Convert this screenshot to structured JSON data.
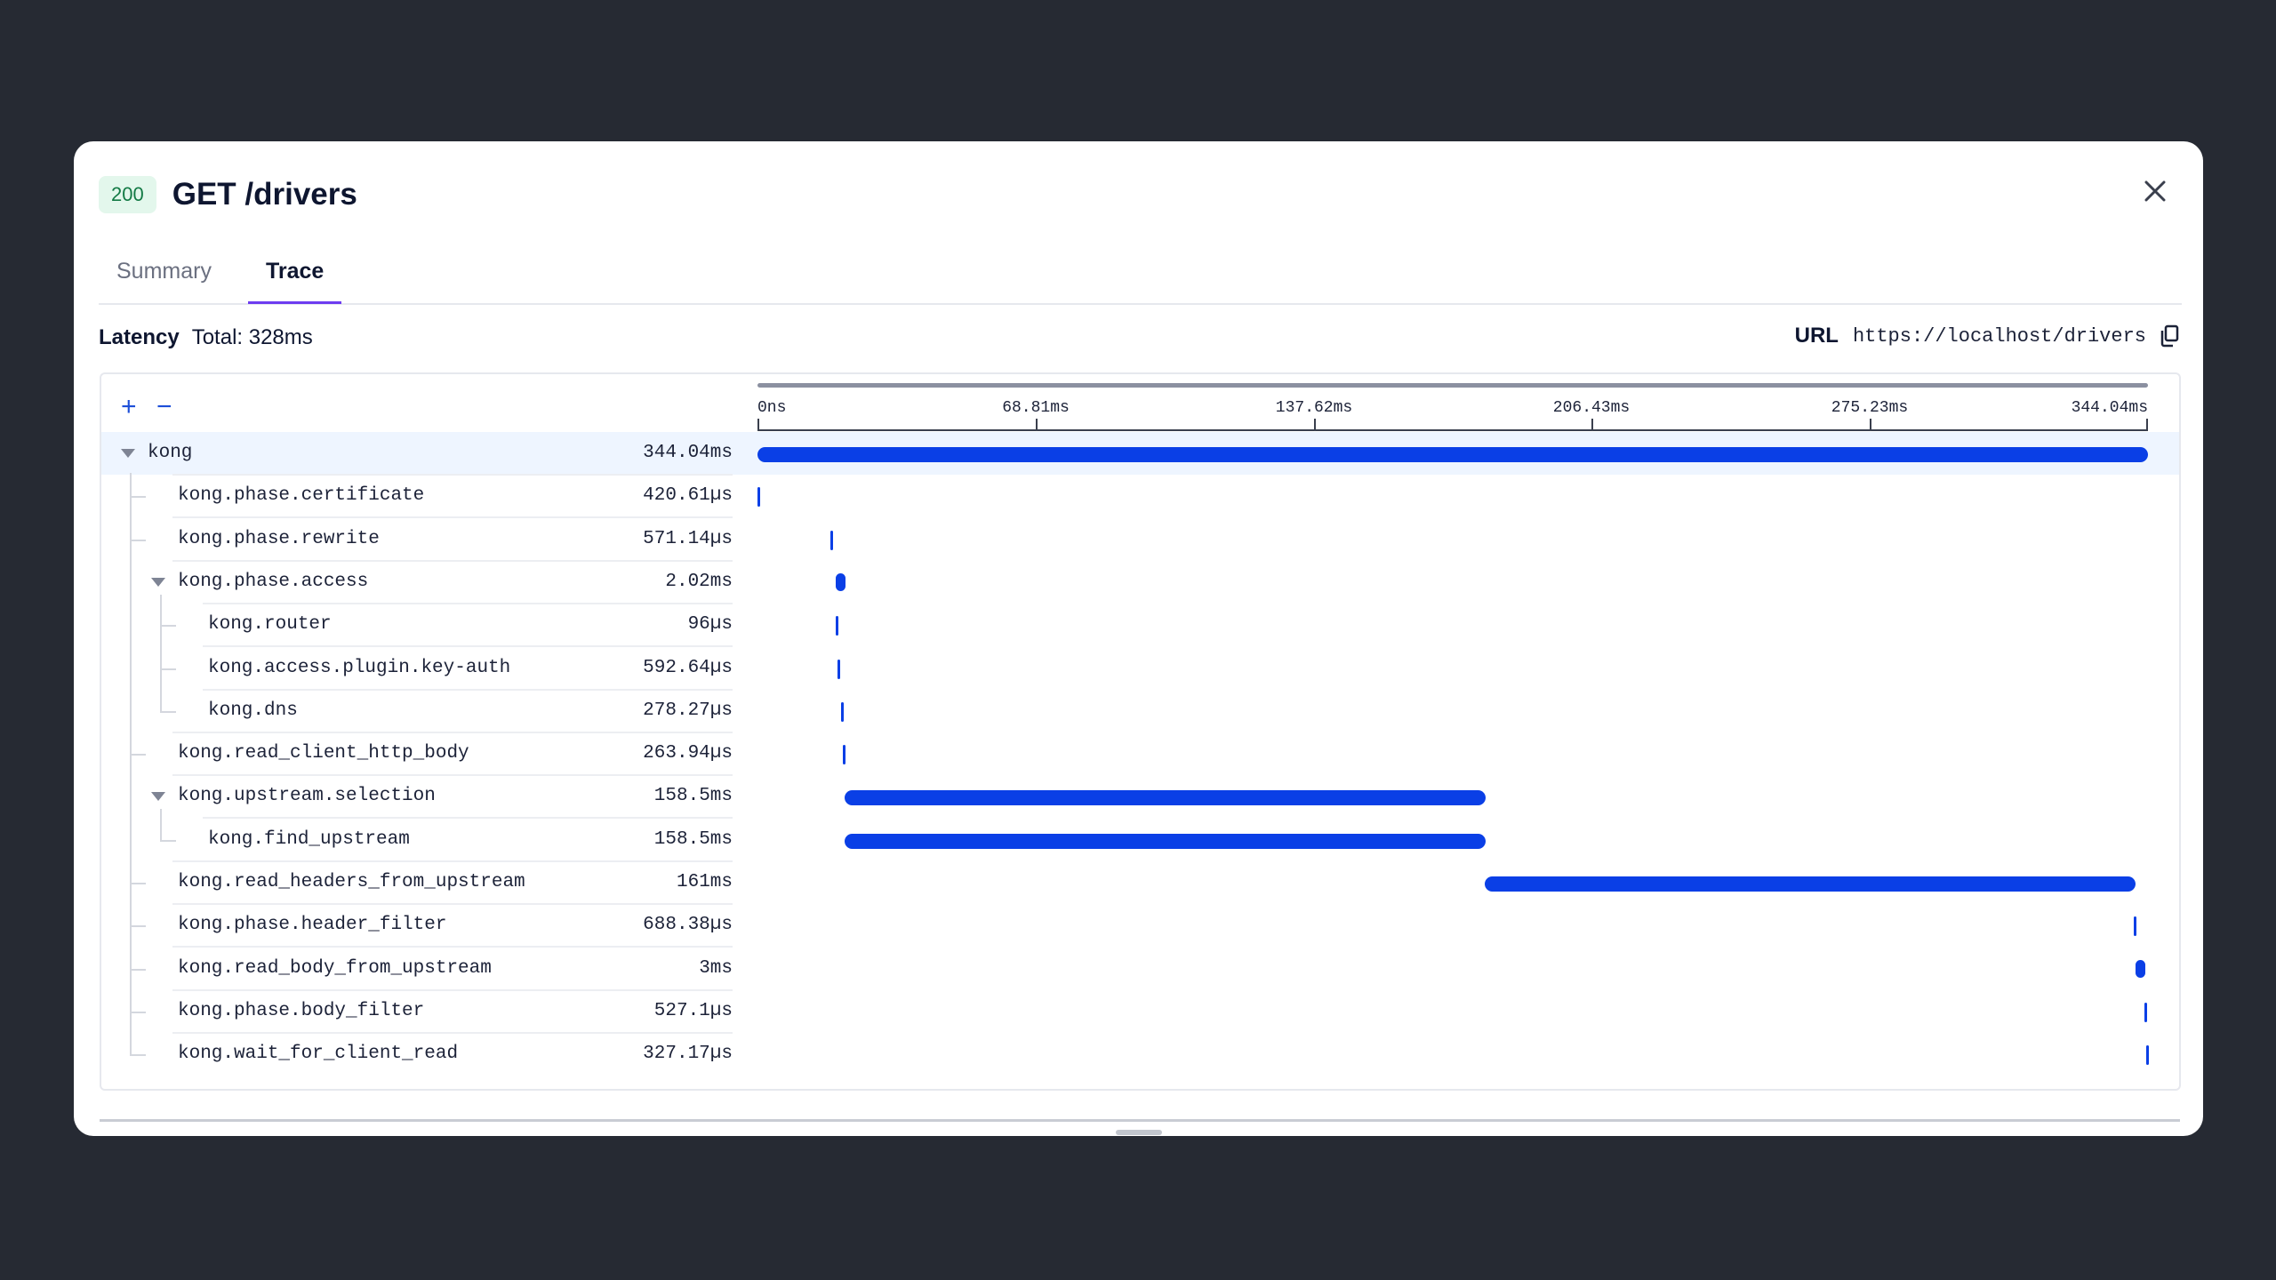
{
  "request": {
    "status": "200",
    "title": "GET /drivers"
  },
  "tabs": [
    {
      "label": "Summary",
      "active": false
    },
    {
      "label": "Trace",
      "active": true
    }
  ],
  "latency": {
    "label": "Latency",
    "total": "Total: 328ms"
  },
  "url": {
    "label": "URL",
    "value": "https://localhost/drivers"
  },
  "zoom": {
    "in": "+",
    "out": "−"
  },
  "axis": {
    "unit": "ms",
    "max": 344.04,
    "ticks": [
      "0ns",
      "68.81ms",
      "137.62ms",
      "206.43ms",
      "275.23ms",
      "344.04ms"
    ]
  },
  "spans": [
    {
      "name": "kong",
      "duration": "344.04ms",
      "depth": 0,
      "collapsible": true,
      "start_ms": 0,
      "dur_ms": 344.04
    },
    {
      "name": "kong.phase.certificate",
      "duration": "420.61µs",
      "depth": 1,
      "collapsible": false,
      "start_ms": 0,
      "dur_ms": 0.42
    },
    {
      "name": "kong.phase.rewrite",
      "duration": "571.14µs",
      "depth": 1,
      "collapsible": false,
      "start_ms": 18,
      "dur_ms": 0.57
    },
    {
      "name": "kong.phase.access",
      "duration": "2.02ms",
      "depth": 1,
      "collapsible": true,
      "start_ms": 19.4,
      "dur_ms": 2.02
    },
    {
      "name": "kong.router",
      "duration": "96µs",
      "depth": 2,
      "collapsible": false,
      "start_ms": 19.4,
      "dur_ms": 0.1
    },
    {
      "name": "kong.access.plugin.key-auth",
      "duration": "592.64µs",
      "depth": 2,
      "collapsible": false,
      "start_ms": 19.9,
      "dur_ms": 0.59
    },
    {
      "name": "kong.dns",
      "duration": "278.27µs",
      "depth": 2,
      "collapsible": false,
      "start_ms": 20.6,
      "dur_ms": 0.28
    },
    {
      "name": "kong.read_client_http_body",
      "duration": "263.94µs",
      "depth": 1,
      "collapsible": false,
      "start_ms": 21.2,
      "dur_ms": 0.26
    },
    {
      "name": "kong.upstream.selection",
      "duration": "158.5ms",
      "depth": 1,
      "collapsible": true,
      "start_ms": 21.5,
      "dur_ms": 158.5
    },
    {
      "name": "kong.find_upstream",
      "duration": "158.5ms",
      "depth": 2,
      "collapsible": false,
      "start_ms": 21.5,
      "dur_ms": 158.5
    },
    {
      "name": "kong.read_headers_from_upstream",
      "duration": "161ms",
      "depth": 1,
      "collapsible": false,
      "start_ms": 180,
      "dur_ms": 161
    },
    {
      "name": "kong.phase.header_filter",
      "duration": "688.38µs",
      "depth": 1,
      "collapsible": false,
      "start_ms": 340.6,
      "dur_ms": 0.69
    },
    {
      "name": "kong.read_body_from_upstream",
      "duration": "3ms",
      "depth": 1,
      "collapsible": false,
      "start_ms": 341,
      "dur_ms": 3
    },
    {
      "name": "kong.phase.body_filter",
      "duration": "527.1µs",
      "depth": 1,
      "collapsible": false,
      "start_ms": 343.1,
      "dur_ms": 0.53
    },
    {
      "name": "kong.wait_for_client_read",
      "duration": "327.17µs",
      "depth": 1,
      "collapsible": false,
      "start_ms": 343.6,
      "dur_ms": 0.33
    }
  ]
}
